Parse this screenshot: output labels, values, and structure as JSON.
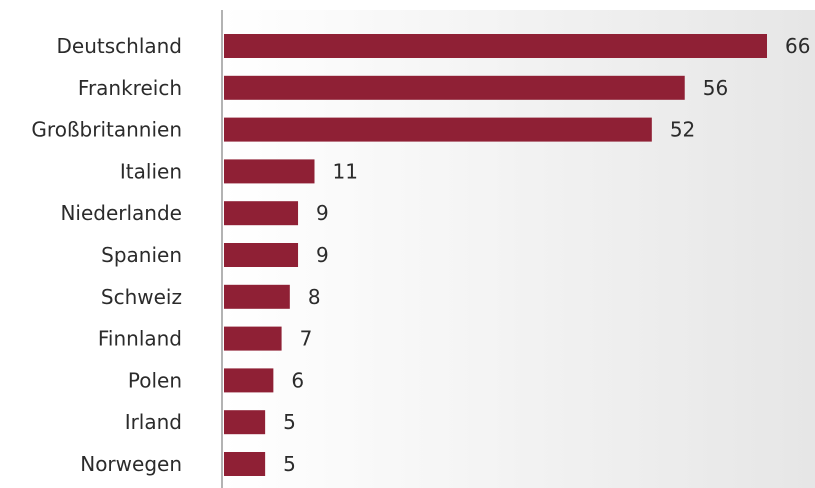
{
  "chart_data": {
    "type": "bar",
    "orientation": "horizontal",
    "categories": [
      "Deutschland",
      "Frankreich",
      "Großbritannien",
      "Italien",
      "Niederlande",
      "Spanien",
      "Schweiz",
      "Finnland",
      "Polen",
      "Irland",
      "Norwegen"
    ],
    "values": [
      66,
      56,
      52,
      11,
      9,
      9,
      8,
      7,
      6,
      5,
      5
    ],
    "title": "",
    "xlabel": "",
    "ylabel": "",
    "xlim": [
      0,
      66
    ],
    "grid": false,
    "legend": "none",
    "bar_color": "#8f2035",
    "background_gradient": [
      "#ffffff",
      "#e6e6e6"
    ]
  }
}
